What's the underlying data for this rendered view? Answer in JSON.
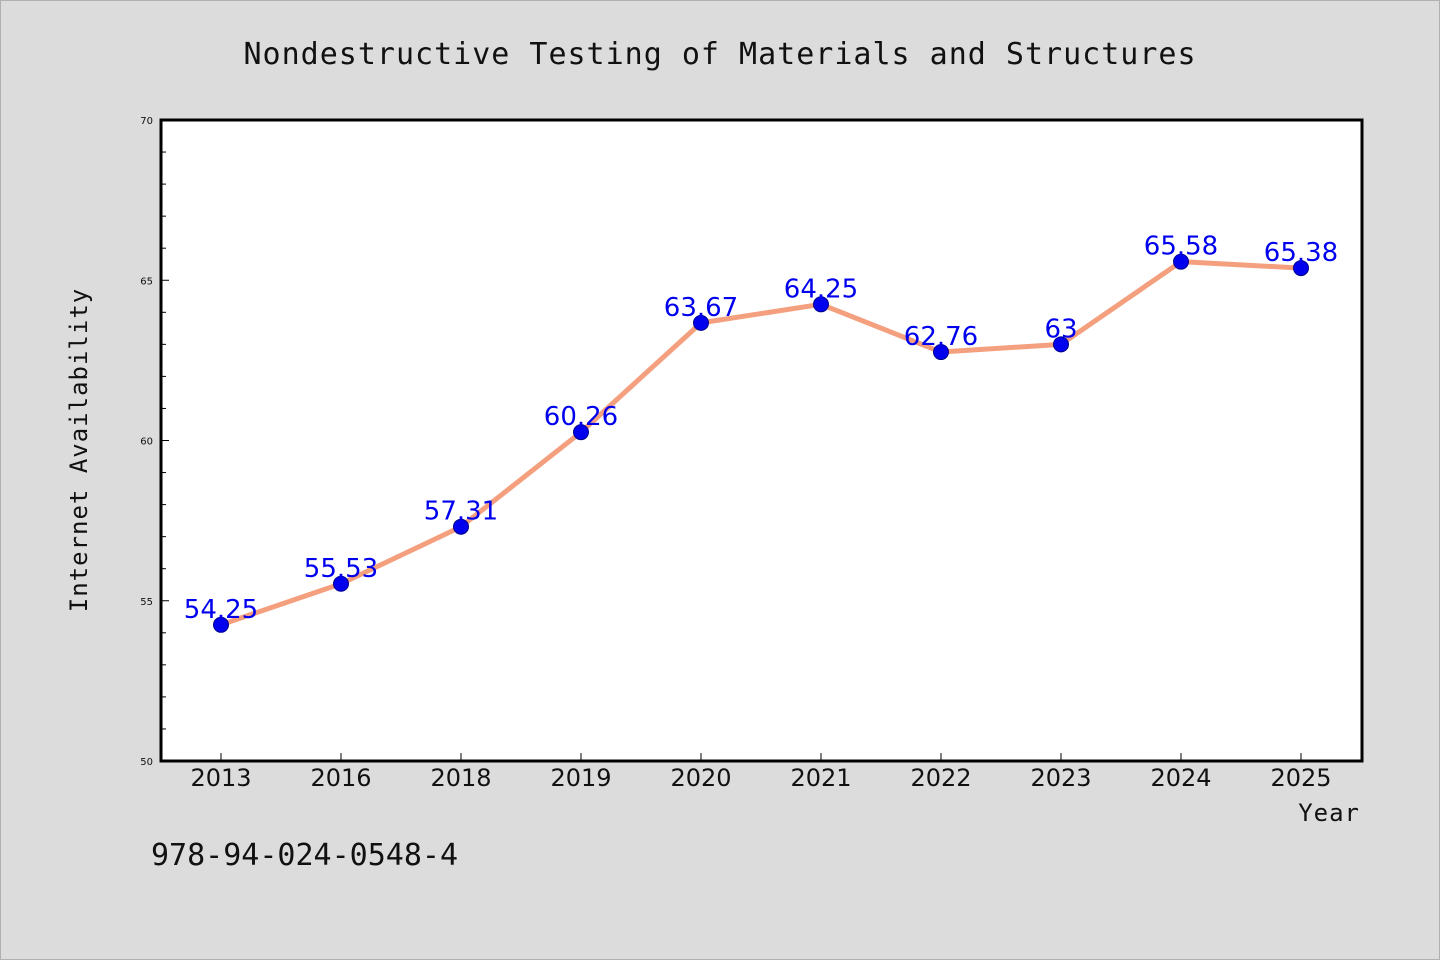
{
  "chart_data": {
    "type": "line",
    "title": "Nondestructive Testing of Materials and Structures",
    "xlabel": "Year",
    "ylabel": "Internet Availability",
    "categories": [
      "2013",
      "2016",
      "2018",
      "2019",
      "2020",
      "2021",
      "2022",
      "2023",
      "2024",
      "2025"
    ],
    "series": [
      {
        "values": [
          54.25,
          55.53,
          57.31,
          60.26,
          63.67,
          64.25,
          62.76,
          63,
          65.58,
          65.38
        ],
        "data_labels": [
          "54.25",
          "55.53",
          "57.31",
          "60.26",
          "63.67",
          "64.25",
          "62.76",
          "63",
          "65.58",
          "65.38"
        ]
      }
    ],
    "ylim": [
      50,
      70
    ],
    "yticks": [
      "50",
      "55",
      "60",
      "65",
      "70"
    ],
    "grid": false,
    "legend": "none",
    "colors": {
      "line": "#f4a07e",
      "marker": "#0000ee",
      "label": "#0000ee",
      "plot_bg": "#ffffff",
      "page_bg": "#dcdcdc"
    }
  },
  "footer": {
    "isbn": "978-94-024-0548-4"
  }
}
